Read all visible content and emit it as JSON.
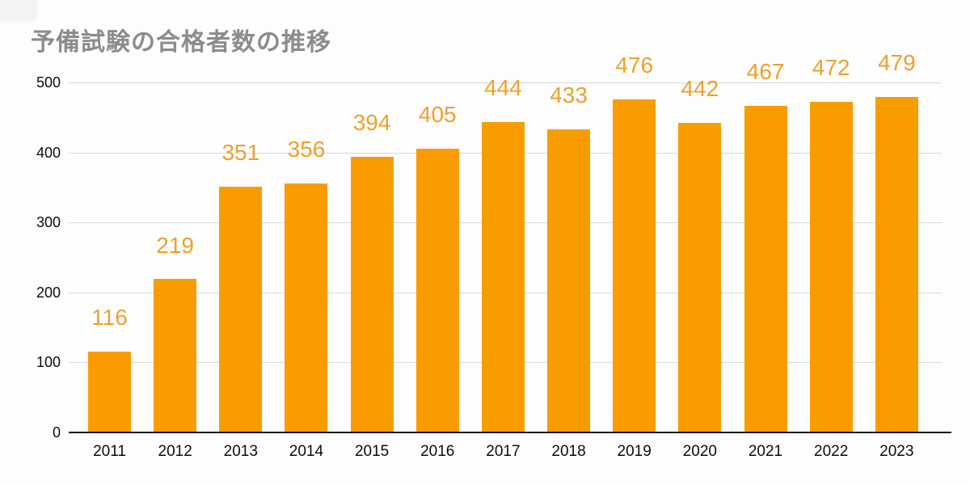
{
  "page": {
    "background_color": "#FDFDFD"
  },
  "chart_data": {
    "type": "bar",
    "title": "予備試験の合格者数の推移",
    "categories": [
      "2011",
      "2012",
      "2013",
      "2014",
      "2015",
      "2016",
      "2017",
      "2018",
      "2019",
      "2020",
      "2021",
      "2022",
      "2023"
    ],
    "values": [
      116,
      219,
      351,
      356,
      394,
      405,
      444,
      433,
      476,
      442,
      467,
      472,
      479
    ],
    "xlabel": "",
    "ylabel": "",
    "ylim": [
      0,
      500
    ],
    "y_ticks": [
      0,
      100,
      200,
      300,
      400,
      500
    ],
    "grid": "horizontal",
    "legend_position": "none",
    "data_labels_shown": true,
    "colors": {
      "bar": "#F99C00",
      "value_label": "#F0A02B",
      "title": "#8C8C8C",
      "axis_text": "#0D0D0D",
      "gridline": "#D9D9D9",
      "axis_line": "#1A1A1A"
    }
  }
}
